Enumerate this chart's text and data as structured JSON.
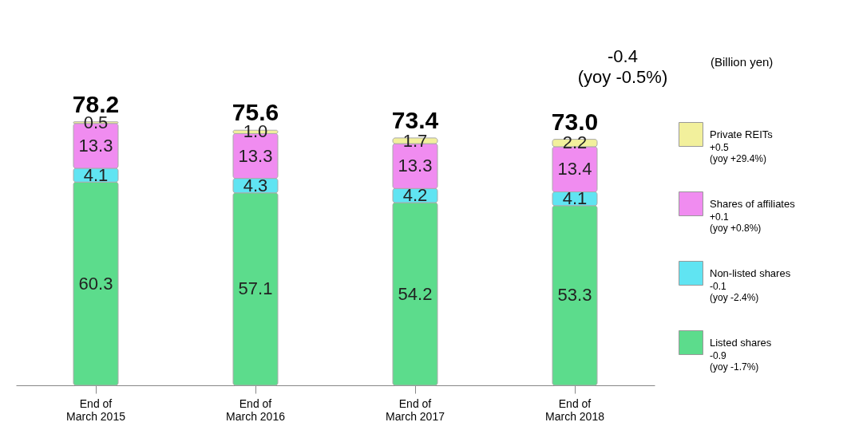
{
  "chart_data": {
    "type": "bar",
    "stacked": true,
    "data_labels": true,
    "legend": "right",
    "categories": [
      "End of\nMarch 2015",
      "End of\nMarch 2016",
      "End of\nMarch 2017",
      "End of\nMarch 2018"
    ],
    "series": [
      {
        "name": "Listed shares",
        "color": "#5cdc8c",
        "values": [
          60.3,
          57.1,
          54.2,
          53.3
        ]
      },
      {
        "name": "Non-listed shares",
        "color": "#60e4f2",
        "values": [
          4.1,
          4.3,
          4.2,
          4.1
        ]
      },
      {
        "name": "Shares of affiliates",
        "color": "#f08cf0",
        "values": [
          13.3,
          13.3,
          13.3,
          13.4
        ]
      },
      {
        "name": "Private REITs",
        "color": "#f2f09c",
        "values": [
          0.5,
          1.0,
          1.7,
          2.2
        ],
        "value_labels": [
          "0.5",
          "1.0",
          "1.7",
          "2.2"
        ]
      }
    ],
    "totals": [
      "78.2",
      "75.6",
      "73.4",
      "73.0"
    ],
    "annotations": [
      "-0.4",
      "(yoy -0.5%)",
      "(Billion yen)",
      "-0.9",
      "(yoy -1.7%)",
      "-0.1",
      "(yoy -2.4%)",
      "+0.1",
      "(yoy +0.8%)",
      "+0.5",
      "(yoy +29.4%)"
    ]
  }
}
